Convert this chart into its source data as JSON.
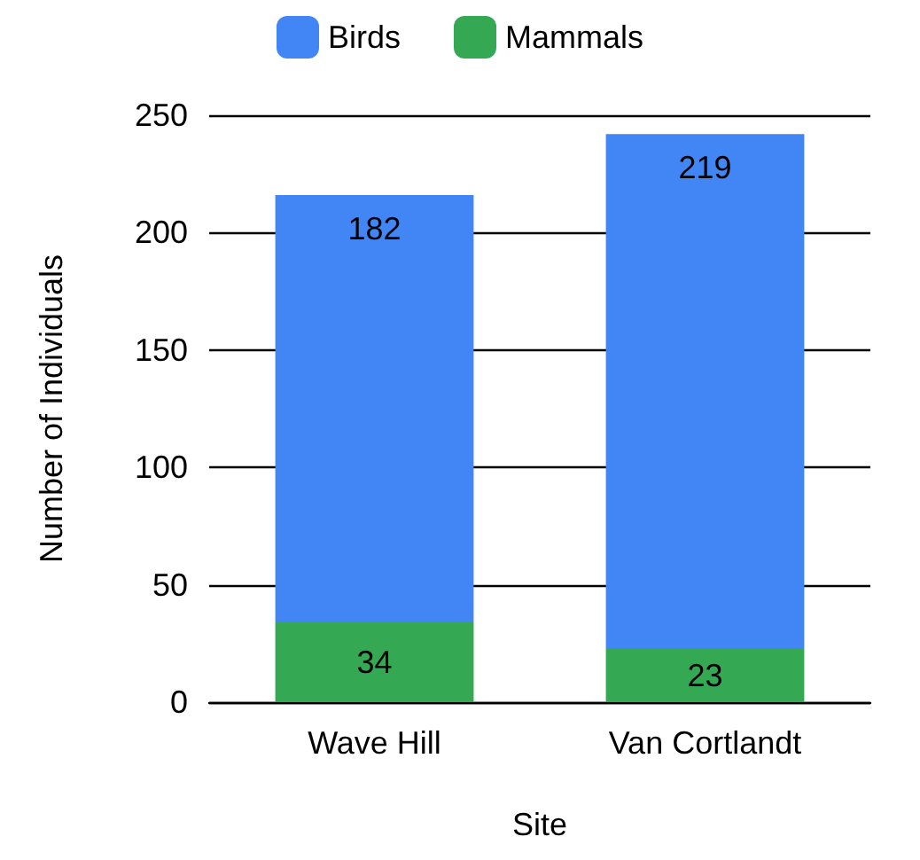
{
  "chart_data": {
    "type": "bar",
    "xlabel": "Site",
    "ylabel": "Number of Individuals",
    "categories": [
      "Wave Hill",
      "Van Cortlandt"
    ],
    "stacked": true,
    "series": [
      {
        "name": "Mammals",
        "color": "#34a853",
        "values": [
          34,
          23
        ]
      },
      {
        "name": "Birds",
        "color": "#4285f4",
        "values": [
          182,
          219
        ]
      }
    ],
    "ylim": [
      0,
      250
    ],
    "yticks": [
      0,
      50,
      100,
      150,
      200,
      250
    ],
    "grid": "y",
    "legend": "top",
    "data_labels": true
  }
}
